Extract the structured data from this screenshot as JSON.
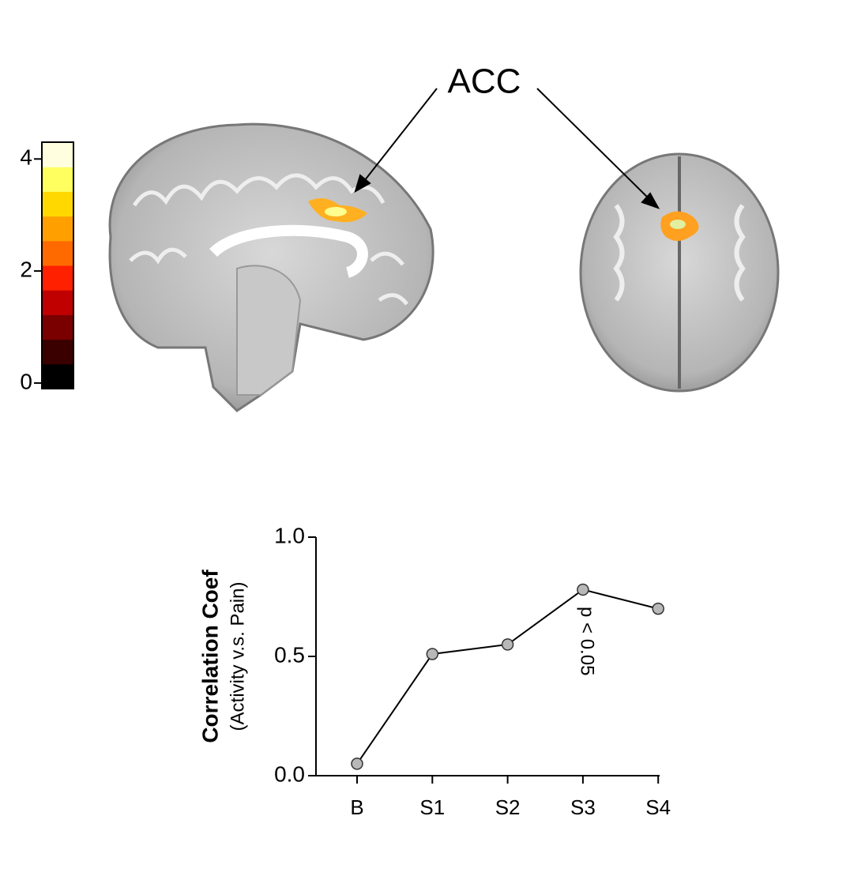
{
  "chart_data": [
    {
      "type": "colorbar",
      "annotations": [
        "ACC"
      ],
      "colormap": [
        "#000000",
        "#3a0000",
        "#7a0000",
        "#c00000",
        "#ff2000",
        "#ff6a00",
        "#ffa000",
        "#ffd800",
        "#ffff60",
        "#ffffe0"
      ],
      "ylim": [
        -0.1,
        4.3
      ],
      "yticks": [
        0,
        2,
        4
      ]
    },
    {
      "type": "line",
      "ylabel": [
        "Correlation Coef",
        "(Activity v.s. Pain)"
      ],
      "annotations": [
        "p < 0.05"
      ],
      "categories": [
        "B",
        "S1",
        "S2",
        "S3",
        "S4"
      ],
      "values": [
        0.05,
        0.51,
        0.55,
        0.78,
        0.7
      ],
      "color": "#000000",
      "marker_color": "#b8b8b8",
      "ylim": [
        0,
        1
      ],
      "yticks": [
        {
          "value": 0,
          "label": "0.0"
        },
        0.5,
        {
          "value": 1,
          "label": "1.0"
        }
      ]
    }
  ]
}
